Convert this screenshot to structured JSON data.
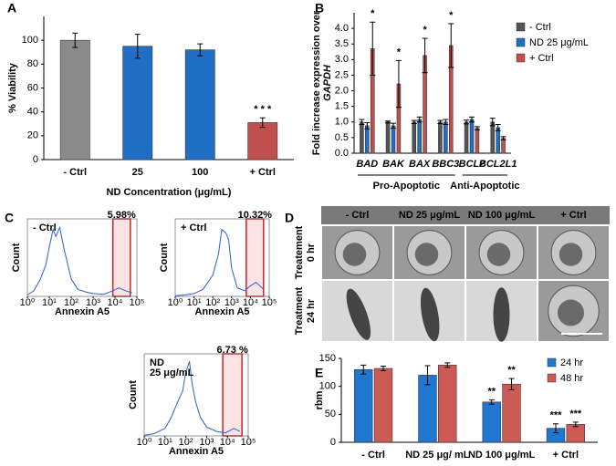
{
  "chart_data": [
    {
      "type": "bar",
      "panel": "A",
      "ylabel": "% Viability",
      "xlabel": "ND Concentration (μg/mL)",
      "categories": [
        "- Ctrl",
        "25",
        "100",
        "+ Ctrl"
      ],
      "values": [
        100,
        95,
        92,
        31
      ],
      "errors": [
        6,
        10,
        5,
        4
      ],
      "colors": [
        "#8a8a8a",
        "#1f6fc4",
        "#1f6fc4",
        "#c0504d"
      ],
      "annotations": [
        null,
        null,
        null,
        "* * *"
      ],
      "ylim": [
        0,
        120
      ],
      "yticks": [
        0,
        20,
        40,
        60,
        80,
        100
      ]
    },
    {
      "type": "bar",
      "panel": "B",
      "ylabel": "Fold increase expression over",
      "ylabel2": "GAPDH",
      "categories": [
        "BAD",
        "BAK",
        "BAX",
        "BBC3",
        "BCL2",
        "BCL2L1"
      ],
      "groups": [
        "Pro-Apoptotic",
        "Anti-Apoptotic"
      ],
      "series": [
        {
          "name": "- Ctrl",
          "color": "#555555",
          "values": [
            1.0,
            1.0,
            1.0,
            1.0,
            1.0,
            1.0
          ],
          "errors": [
            0.08,
            0.03,
            0.05,
            0.05,
            0.06,
            0.12
          ]
        },
        {
          "name": "ND 25 μg/mL",
          "color": "#1f6fc4",
          "values": [
            0.88,
            0.88,
            1.08,
            1.0,
            1.08,
            0.82
          ],
          "errors": [
            0.1,
            0.08,
            0.08,
            0.08,
            0.08,
            0.1
          ]
        },
        {
          "name": "+ Ctrl",
          "color": "#c0504d",
          "values": [
            3.35,
            2.22,
            3.13,
            3.45,
            0.8,
            0.48
          ],
          "errors": [
            0.85,
            0.75,
            0.55,
            0.7,
            0.05,
            0.05
          ],
          "annotations": [
            "*",
            "*",
            "*",
            "*",
            null,
            null
          ]
        }
      ],
      "ylim": [
        0,
        4.5
      ],
      "yticks": [
        {
          "value": 0,
          "label": "0.0"
        },
        {
          "value": 0.5,
          "label": "0.5"
        },
        {
          "value": 1,
          "label": "1.0"
        },
        {
          "value": 1.5,
          "label": "1.5"
        },
        {
          "value": 2,
          "label": "2.0"
        },
        {
          "value": 2.5,
          "label": "2.5"
        },
        {
          "value": 3,
          "label": "3.0"
        },
        {
          "value": 3.5,
          "label": "3.5"
        },
        {
          "value": 4,
          "label": "4.0"
        }
      ]
    },
    {
      "type": "line",
      "panel": "C",
      "xscale": "log",
      "ylabel": "Count",
      "xlabel": "Annexin A5",
      "annotation": [
        "- Ctrl"
      ],
      "gate_label": "5.98%",
      "gate": [
        8000,
        50000
      ],
      "color": "#2f5fd0",
      "x": [
        1,
        2,
        4,
        7,
        10,
        15,
        20,
        30,
        45,
        70,
        100,
        200,
        500,
        1000,
        3000,
        8000,
        15000,
        30000,
        60000
      ],
      "values": [
        2,
        8,
        25,
        45,
        70,
        95,
        85,
        98,
        70,
        45,
        25,
        10,
        6,
        4,
        3,
        8,
        12,
        8,
        5
      ],
      "xlim": [
        1,
        100000
      ],
      "ylim": [
        0,
        110
      ],
      "xticks": [
        {
          "value": 1,
          "label": "10⁰"
        },
        {
          "value": 10,
          "label": "10¹"
        },
        {
          "value": 100,
          "label": "10²"
        },
        {
          "value": 1000,
          "label": "10³"
        },
        {
          "value": 10000,
          "label": "10⁴"
        },
        {
          "value": 100000,
          "label": "10⁵"
        }
      ]
    },
    {
      "type": "line",
      "xscale": "log",
      "ylabel": "Count",
      "xlabel": "Annexin A5",
      "annotation": [
        "+ Ctrl"
      ],
      "gate_label": "10.32%",
      "gate": [
        6000,
        50000
      ],
      "color": "#2f5fd0",
      "x": [
        1,
        3,
        10,
        30,
        100,
        200,
        300,
        500,
        700,
        1000,
        2000,
        5000,
        10000,
        20000,
        50000
      ],
      "values": [
        1,
        2,
        4,
        10,
        30,
        60,
        95,
        90,
        80,
        40,
        12,
        8,
        15,
        20,
        10
      ],
      "xlim": [
        1,
        100000
      ],
      "ylim": [
        0,
        110
      ],
      "xticks": [
        {
          "value": 1,
          "label": "10⁰"
        },
        {
          "value": 10,
          "label": "10¹"
        },
        {
          "value": 100,
          "label": "10²"
        },
        {
          "value": 1000,
          "label": "10³"
        },
        {
          "value": 10000,
          "label": "10⁴"
        },
        {
          "value": 100000,
          "label": "10⁵"
        }
      ]
    },
    {
      "type": "line",
      "xscale": "log",
      "ylabel": "Count",
      "xlabel": "Annexin A5",
      "annotation": [
        "ND",
        "25 μg/mL"
      ],
      "gate_label": "6.73 %",
      "gate": [
        6000,
        50000
      ],
      "color": "#2f5fd0",
      "x": [
        1,
        3,
        10,
        20,
        40,
        70,
        100,
        150,
        200,
        300,
        500,
        1000,
        3000,
        8000,
        20000,
        40000
      ],
      "values": [
        1,
        3,
        10,
        25,
        45,
        60,
        85,
        100,
        70,
        45,
        25,
        12,
        6,
        4,
        10,
        6
      ],
      "xlim": [
        1,
        100000
      ],
      "ylim": [
        0,
        110
      ],
      "xticks": [
        {
          "value": 1,
          "label": "10⁰"
        },
        {
          "value": 10,
          "label": "10¹"
        },
        {
          "value": 100,
          "label": "10²"
        },
        {
          "value": 1000,
          "label": "10³"
        },
        {
          "value": 10000,
          "label": "10⁴"
        },
        {
          "value": 100000,
          "label": "10⁵"
        }
      ]
    },
    {
      "type": "bar",
      "panel": "E",
      "ylabel": "rbm",
      "categories": [
        "- Ctrl",
        "ND 25 μg/ mL",
        "ND 100 μg/mL",
        "+ Ctrl"
      ],
      "series": [
        {
          "name": "24 hr",
          "color": "#1f77d0",
          "values": [
            130,
            120,
            72,
            25
          ],
          "errors": [
            8,
            17,
            4,
            8
          ],
          "annotations": [
            null,
            null,
            "**",
            "***"
          ]
        },
        {
          "name": "48 hr",
          "color": "#cc5a55",
          "values": [
            132,
            138,
            104,
            32
          ],
          "errors": [
            4,
            4,
            10,
            4
          ],
          "annotations": [
            null,
            null,
            "**",
            "***"
          ]
        }
      ],
      "ylim": [
        0,
        150
      ],
      "yticks": [
        0,
        50,
        100,
        150
      ]
    }
  ],
  "panel_d": {
    "panel": "D",
    "columns": [
      "- Ctrl",
      "ND 25 μg/mL",
      "ND  100 μg/mL",
      "+ Ctrl"
    ],
    "rows": [
      [
        "Treatement",
        "0 hr"
      ],
      [
        "Treatment",
        "24 hr"
      ]
    ]
  }
}
